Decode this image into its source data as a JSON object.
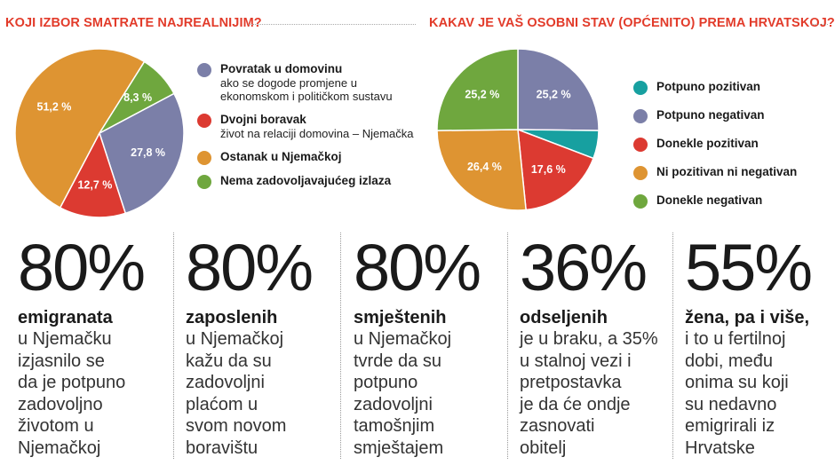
{
  "pie1": {
    "title": "KOJI IZBOR SMATRATE NAJREALNIJIM?",
    "legend": [
      {
        "name": "Povratak u domovinu",
        "desc": "ako se dogode promjene u ekonomskom i političkom sustavu",
        "color": "#7b7fa8"
      },
      {
        "name": "Dvojni boravak",
        "desc": "život na relaciji domovina – Njemačka",
        "color": "#dc3a31"
      },
      {
        "name": "Ostanak u Njemačkoj",
        "desc": "",
        "color": "#de9432"
      },
      {
        "name": "Nema zadovoljavajućeg izlaza",
        "desc": "",
        "color": "#6fa73e"
      }
    ]
  },
  "pie2": {
    "title": "KAKAV JE VAŠ OSOBNI STAV (OPĆENITO) PREMA HRVATSKOJ?",
    "legend": [
      {
        "name": "Potpuno pozitivan",
        "color": "#17a0a0"
      },
      {
        "name": "Potpuno negativan",
        "color": "#7b7fa8"
      },
      {
        "name": "Donekle pozitivan",
        "color": "#dc3a31"
      },
      {
        "name": "Ni pozitivan ni negativan",
        "color": "#de9432"
      },
      {
        "name": "Donekle negativan",
        "color": "#6fa73e"
      }
    ]
  },
  "chart_data": [
    {
      "type": "pie",
      "title": "KOJI IZBOR SMATRATE NAJREALNIJIM?",
      "slices": [
        {
          "name": "Povratak u domovinu",
          "value": 27.8,
          "label": "27,8 %",
          "color": "#7b7fa8"
        },
        {
          "name": "Dvojni boravak",
          "value": 12.7,
          "label": "12,7 %",
          "color": "#dc3a31"
        },
        {
          "name": "Ostanak u Njemačkoj",
          "value": 51.2,
          "label": "51,2 %",
          "color": "#de9432"
        },
        {
          "name": "Nema zadovoljavajućeg izlaza",
          "value": 8.3,
          "label": "8,3 %",
          "color": "#6fa73e"
        }
      ]
    },
    {
      "type": "pie",
      "title": "KAKAV JE VAŠ OSOBNI STAV (OPĆENITO) PREMA HRVATSKOJ?",
      "slices": [
        {
          "name": "Potpuno negativan",
          "value": 25.2,
          "label": "25,2 %",
          "color": "#7b7fa8"
        },
        {
          "name": "Potpuno pozitivan",
          "value": 5.6,
          "label": "",
          "color": "#17a0a0"
        },
        {
          "name": "Donekle pozitivan",
          "value": 17.6,
          "label": "17,6 %",
          "color": "#dc3a31"
        },
        {
          "name": "Ni pozitivan ni negativan",
          "value": 26.4,
          "label": "26,4 %",
          "color": "#de9432"
        },
        {
          "name": "Donekle negativan",
          "value": 25.2,
          "label": "25,2 %",
          "color": "#6fa73e"
        }
      ]
    }
  ],
  "stats": [
    {
      "value": "80%",
      "lead": "emigranata",
      "rest": [
        "u Njemačku",
        "izjasnilo se",
        "da je potpuno",
        "zadovoljno",
        "životom u",
        "Njemačkoj"
      ]
    },
    {
      "value": "80%",
      "lead": "zaposlenih",
      "rest": [
        "u Njemačkoj",
        "kažu da su",
        "zadovoljni",
        "plaćom u",
        "svom novom",
        "boravištu"
      ]
    },
    {
      "value": "80%",
      "lead": "smještenih",
      "rest": [
        "u Njemačkoj",
        "tvrde da su",
        "potpuno",
        "zadovoljni",
        "tamošnjim",
        "smještajem"
      ]
    },
    {
      "value": "36%",
      "lead": "odseljenih",
      "rest": [
        "je u braku, a 35%",
        "u stalnoj vezi i",
        "pretpostavka",
        "je da će ondje",
        "zasnovati",
        "obitelj"
      ]
    },
    {
      "value": "55%",
      "lead": "žena, pa i više,",
      "rest": [
        "i to u fertilnoj",
        "dobi, među",
        "onima su koji",
        "su nedavno",
        "emigrirali iz",
        "Hrvatske"
      ]
    }
  ]
}
